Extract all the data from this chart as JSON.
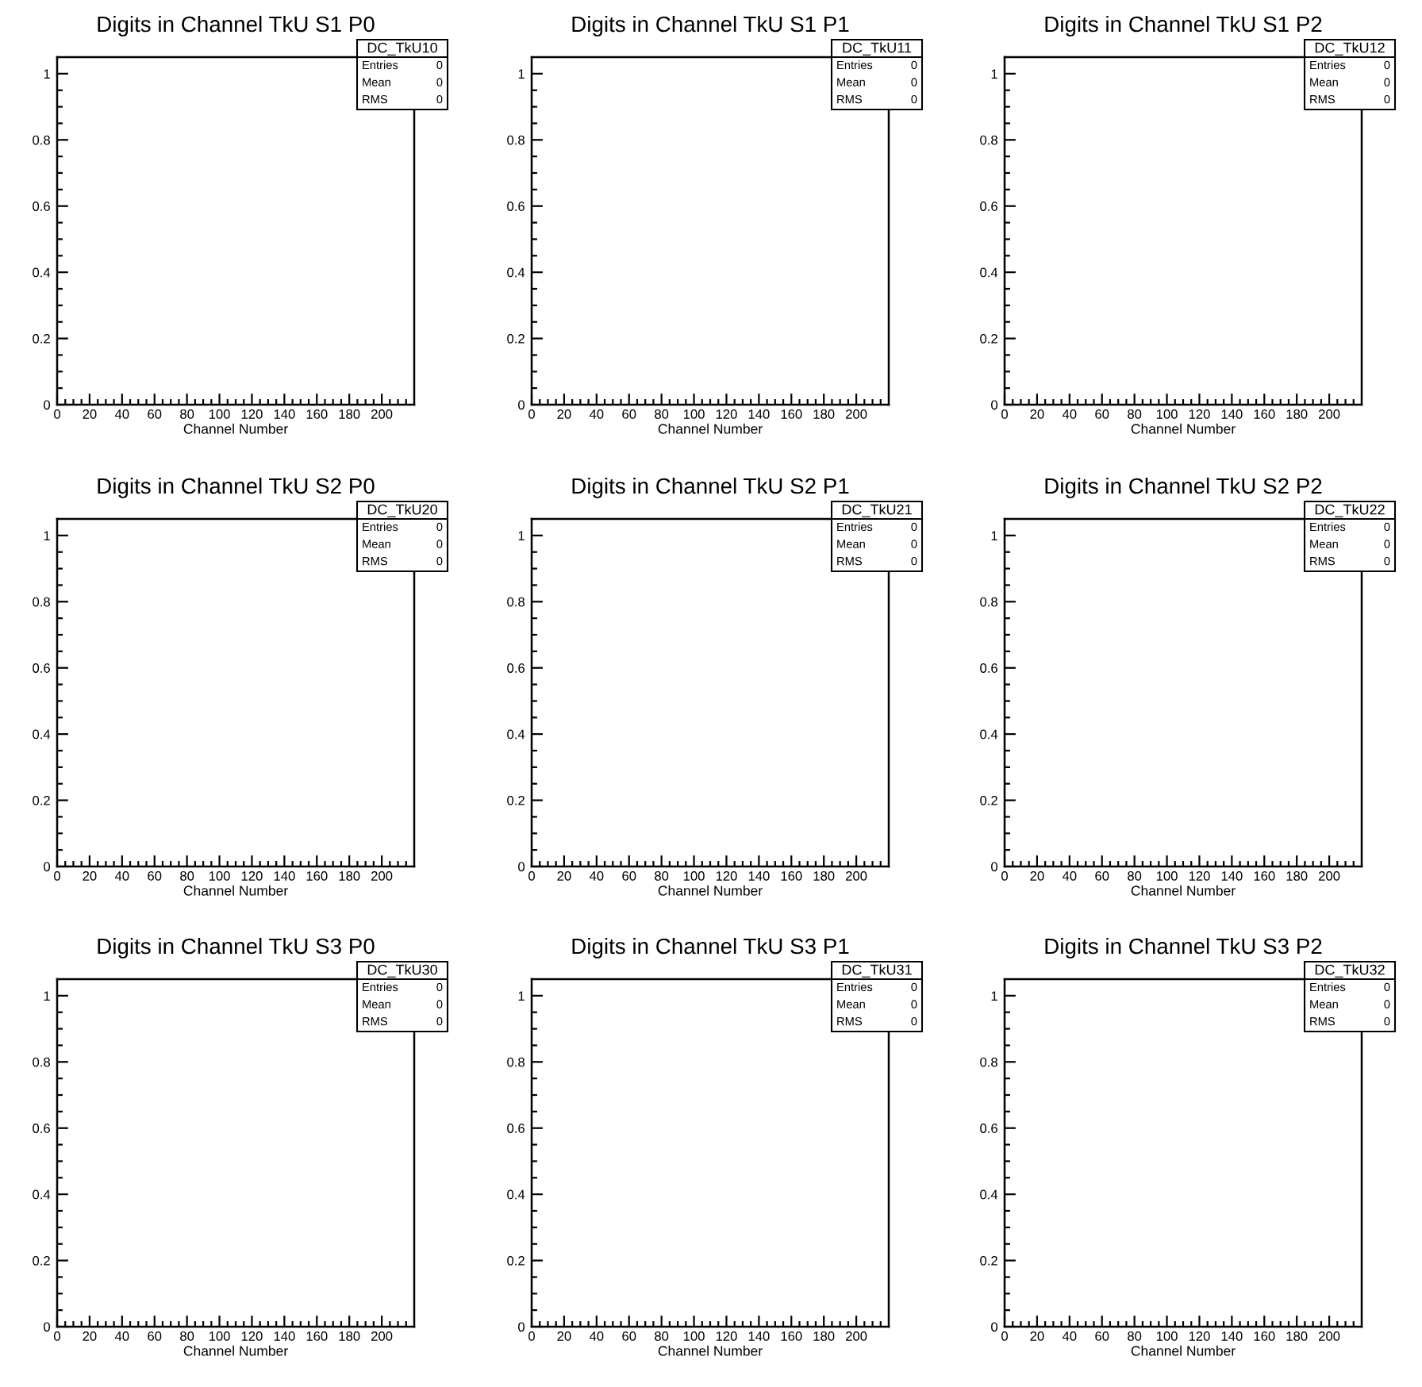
{
  "chart_data": [
    {
      "type": "histogram",
      "title": "Digits in Channel TkU S1 P0",
      "xlabel": "Channel Number",
      "xlim": [
        0,
        220
      ],
      "ylim": [
        0,
        1.05
      ],
      "xticks": [
        0,
        {
          "value": 5,
          "label": null
        },
        {
          "value": 10,
          "label": null
        },
        {
          "value": 15,
          "label": null
        },
        20,
        {
          "value": 25,
          "label": null
        },
        {
          "value": 30,
          "label": null
        },
        {
          "value": 35,
          "label": null
        },
        40,
        {
          "value": 45,
          "label": null
        },
        {
          "value": 50,
          "label": null
        },
        {
          "value": 55,
          "label": null
        },
        60,
        {
          "value": 65,
          "label": null
        },
        {
          "value": 70,
          "label": null
        },
        {
          "value": 75,
          "label": null
        },
        80,
        {
          "value": 85,
          "label": null
        },
        {
          "value": 90,
          "label": null
        },
        {
          "value": 95,
          "label": null
        },
        100,
        {
          "value": 105,
          "label": null
        },
        {
          "value": 110,
          "label": null
        },
        {
          "value": 115,
          "label": null
        },
        120,
        {
          "value": 125,
          "label": null
        },
        {
          "value": 130,
          "label": null
        },
        {
          "value": 135,
          "label": null
        },
        140,
        {
          "value": 145,
          "label": null
        },
        {
          "value": 150,
          "label": null
        },
        {
          "value": 155,
          "label": null
        },
        160,
        {
          "value": 165,
          "label": null
        },
        {
          "value": 170,
          "label": null
        },
        {
          "value": 175,
          "label": null
        },
        180,
        {
          "value": 185,
          "label": null
        },
        {
          "value": 190,
          "label": null
        },
        {
          "value": 195,
          "label": null
        },
        200,
        {
          "value": 205,
          "label": null
        },
        {
          "value": 210,
          "label": null
        },
        {
          "value": 215,
          "label": null
        }
      ],
      "yticks": [
        0,
        {
          "value": 0.05,
          "label": null
        },
        {
          "value": 0.1,
          "label": null
        },
        {
          "value": 0.15,
          "label": null
        },
        0.2,
        {
          "value": 0.25,
          "label": null
        },
        {
          "value": 0.3,
          "label": null
        },
        {
          "value": 0.35,
          "label": null
        },
        0.4,
        {
          "value": 0.45,
          "label": null
        },
        {
          "value": 0.5,
          "label": null
        },
        {
          "value": 0.55,
          "label": null
        },
        0.6,
        {
          "value": 0.65,
          "label": null
        },
        {
          "value": 0.7,
          "label": null
        },
        {
          "value": 0.75,
          "label": null
        },
        0.8,
        {
          "value": 0.85,
          "label": null
        },
        {
          "value": 0.9,
          "label": null
        },
        {
          "value": 0.95,
          "label": null
        },
        1
      ],
      "annotations": [
        "DC_TkU10",
        "Entries",
        "0",
        "Mean",
        "0",
        "RMS",
        "0"
      ]
    },
    {
      "type": "histogram",
      "title": "Digits in Channel TkU S1 P1",
      "xlabel": "Channel Number",
      "xlim": [
        0,
        220
      ],
      "ylim": [
        0,
        1.05
      ],
      "xticks": [
        0,
        {
          "value": 5,
          "label": null
        },
        {
          "value": 10,
          "label": null
        },
        {
          "value": 15,
          "label": null
        },
        20,
        {
          "value": 25,
          "label": null
        },
        {
          "value": 30,
          "label": null
        },
        {
          "value": 35,
          "label": null
        },
        40,
        {
          "value": 45,
          "label": null
        },
        {
          "value": 50,
          "label": null
        },
        {
          "value": 55,
          "label": null
        },
        60,
        {
          "value": 65,
          "label": null
        },
        {
          "value": 70,
          "label": null
        },
        {
          "value": 75,
          "label": null
        },
        80,
        {
          "value": 85,
          "label": null
        },
        {
          "value": 90,
          "label": null
        },
        {
          "value": 95,
          "label": null
        },
        100,
        {
          "value": 105,
          "label": null
        },
        {
          "value": 110,
          "label": null
        },
        {
          "value": 115,
          "label": null
        },
        120,
        {
          "value": 125,
          "label": null
        },
        {
          "value": 130,
          "label": null
        },
        {
          "value": 135,
          "label": null
        },
        140,
        {
          "value": 145,
          "label": null
        },
        {
          "value": 150,
          "label": null
        },
        {
          "value": 155,
          "label": null
        },
        160,
        {
          "value": 165,
          "label": null
        },
        {
          "value": 170,
          "label": null
        },
        {
          "value": 175,
          "label": null
        },
        180,
        {
          "value": 185,
          "label": null
        },
        {
          "value": 190,
          "label": null
        },
        {
          "value": 195,
          "label": null
        },
        200,
        {
          "value": 205,
          "label": null
        },
        {
          "value": 210,
          "label": null
        },
        {
          "value": 215,
          "label": null
        }
      ],
      "yticks": [
        0,
        {
          "value": 0.05,
          "label": null
        },
        {
          "value": 0.1,
          "label": null
        },
        {
          "value": 0.15,
          "label": null
        },
        0.2,
        {
          "value": 0.25,
          "label": null
        },
        {
          "value": 0.3,
          "label": null
        },
        {
          "value": 0.35,
          "label": null
        },
        0.4,
        {
          "value": 0.45,
          "label": null
        },
        {
          "value": 0.5,
          "label": null
        },
        {
          "value": 0.55,
          "label": null
        },
        0.6,
        {
          "value": 0.65,
          "label": null
        },
        {
          "value": 0.7,
          "label": null
        },
        {
          "value": 0.75,
          "label": null
        },
        0.8,
        {
          "value": 0.85,
          "label": null
        },
        {
          "value": 0.9,
          "label": null
        },
        {
          "value": 0.95,
          "label": null
        },
        1
      ],
      "annotations": [
        "DC_TkU11",
        "Entries",
        "0",
        "Mean",
        "0",
        "RMS",
        "0"
      ]
    },
    {
      "type": "histogram",
      "title": "Digits in Channel TkU S1 P2",
      "xlabel": "Channel Number",
      "xlim": [
        0,
        220
      ],
      "ylim": [
        0,
        1.05
      ],
      "xticks": [
        0,
        {
          "value": 5,
          "label": null
        },
        {
          "value": 10,
          "label": null
        },
        {
          "value": 15,
          "label": null
        },
        20,
        {
          "value": 25,
          "label": null
        },
        {
          "value": 30,
          "label": null
        },
        {
          "value": 35,
          "label": null
        },
        40,
        {
          "value": 45,
          "label": null
        },
        {
          "value": 50,
          "label": null
        },
        {
          "value": 55,
          "label": null
        },
        60,
        {
          "value": 65,
          "label": null
        },
        {
          "value": 70,
          "label": null
        },
        {
          "value": 75,
          "label": null
        },
        80,
        {
          "value": 85,
          "label": null
        },
        {
          "value": 90,
          "label": null
        },
        {
          "value": 95,
          "label": null
        },
        100,
        {
          "value": 105,
          "label": null
        },
        {
          "value": 110,
          "label": null
        },
        {
          "value": 115,
          "label": null
        },
        120,
        {
          "value": 125,
          "label": null
        },
        {
          "value": 130,
          "label": null
        },
        {
          "value": 135,
          "label": null
        },
        140,
        {
          "value": 145,
          "label": null
        },
        {
          "value": 150,
          "label": null
        },
        {
          "value": 155,
          "label": null
        },
        160,
        {
          "value": 165,
          "label": null
        },
        {
          "value": 170,
          "label": null
        },
        {
          "value": 175,
          "label": null
        },
        180,
        {
          "value": 185,
          "label": null
        },
        {
          "value": 190,
          "label": null
        },
        {
          "value": 195,
          "label": null
        },
        200,
        {
          "value": 205,
          "label": null
        },
        {
          "value": 210,
          "label": null
        },
        {
          "value": 215,
          "label": null
        }
      ],
      "yticks": [
        0,
        {
          "value": 0.05,
          "label": null
        },
        {
          "value": 0.1,
          "label": null
        },
        {
          "value": 0.15,
          "label": null
        },
        0.2,
        {
          "value": 0.25,
          "label": null
        },
        {
          "value": 0.3,
          "label": null
        },
        {
          "value": 0.35,
          "label": null
        },
        0.4,
        {
          "value": 0.45,
          "label": null
        },
        {
          "value": 0.5,
          "label": null
        },
        {
          "value": 0.55,
          "label": null
        },
        0.6,
        {
          "value": 0.65,
          "label": null
        },
        {
          "value": 0.7,
          "label": null
        },
        {
          "value": 0.75,
          "label": null
        },
        0.8,
        {
          "value": 0.85,
          "label": null
        },
        {
          "value": 0.9,
          "label": null
        },
        {
          "value": 0.95,
          "label": null
        },
        1
      ],
      "annotations": [
        "DC_TkU12",
        "Entries",
        "0",
        "Mean",
        "0",
        "RMS",
        "0"
      ]
    },
    {
      "type": "histogram",
      "title": "Digits in Channel TkU S2 P0",
      "xlabel": "Channel Number",
      "xlim": [
        0,
        220
      ],
      "ylim": [
        0,
        1.05
      ],
      "xticks": [
        0,
        {
          "value": 5,
          "label": null
        },
        {
          "value": 10,
          "label": null
        },
        {
          "value": 15,
          "label": null
        },
        20,
        {
          "value": 25,
          "label": null
        },
        {
          "value": 30,
          "label": null
        },
        {
          "value": 35,
          "label": null
        },
        40,
        {
          "value": 45,
          "label": null
        },
        {
          "value": 50,
          "label": null
        },
        {
          "value": 55,
          "label": null
        },
        60,
        {
          "value": 65,
          "label": null
        },
        {
          "value": 70,
          "label": null
        },
        {
          "value": 75,
          "label": null
        },
        80,
        {
          "value": 85,
          "label": null
        },
        {
          "value": 90,
          "label": null
        },
        {
          "value": 95,
          "label": null
        },
        100,
        {
          "value": 105,
          "label": null
        },
        {
          "value": 110,
          "label": null
        },
        {
          "value": 115,
          "label": null
        },
        120,
        {
          "value": 125,
          "label": null
        },
        {
          "value": 130,
          "label": null
        },
        {
          "value": 135,
          "label": null
        },
        140,
        {
          "value": 145,
          "label": null
        },
        {
          "value": 150,
          "label": null
        },
        {
          "value": 155,
          "label": null
        },
        160,
        {
          "value": 165,
          "label": null
        },
        {
          "value": 170,
          "label": null
        },
        {
          "value": 175,
          "label": null
        },
        180,
        {
          "value": 185,
          "label": null
        },
        {
          "value": 190,
          "label": null
        },
        {
          "value": 195,
          "label": null
        },
        200,
        {
          "value": 205,
          "label": null
        },
        {
          "value": 210,
          "label": null
        },
        {
          "value": 215,
          "label": null
        }
      ],
      "yticks": [
        0,
        {
          "value": 0.05,
          "label": null
        },
        {
          "value": 0.1,
          "label": null
        },
        {
          "value": 0.15,
          "label": null
        },
        0.2,
        {
          "value": 0.25,
          "label": null
        },
        {
          "value": 0.3,
          "label": null
        },
        {
          "value": 0.35,
          "label": null
        },
        0.4,
        {
          "value": 0.45,
          "label": null
        },
        {
          "value": 0.5,
          "label": null
        },
        {
          "value": 0.55,
          "label": null
        },
        0.6,
        {
          "value": 0.65,
          "label": null
        },
        {
          "value": 0.7,
          "label": null
        },
        {
          "value": 0.75,
          "label": null
        },
        0.8,
        {
          "value": 0.85,
          "label": null
        },
        {
          "value": 0.9,
          "label": null
        },
        {
          "value": 0.95,
          "label": null
        },
        1
      ],
      "annotations": [
        "DC_TkU20",
        "Entries",
        "0",
        "Mean",
        "0",
        "RMS",
        "0"
      ]
    },
    {
      "type": "histogram",
      "title": "Digits in Channel TkU S2 P1",
      "xlabel": "Channel Number",
      "xlim": [
        0,
        220
      ],
      "ylim": [
        0,
        1.05
      ],
      "xticks": [
        0,
        {
          "value": 5,
          "label": null
        },
        {
          "value": 10,
          "label": null
        },
        {
          "value": 15,
          "label": null
        },
        20,
        {
          "value": 25,
          "label": null
        },
        {
          "value": 30,
          "label": null
        },
        {
          "value": 35,
          "label": null
        },
        40,
        {
          "value": 45,
          "label": null
        },
        {
          "value": 50,
          "label": null
        },
        {
          "value": 55,
          "label": null
        },
        60,
        {
          "value": 65,
          "label": null
        },
        {
          "value": 70,
          "label": null
        },
        {
          "value": 75,
          "label": null
        },
        80,
        {
          "value": 85,
          "label": null
        },
        {
          "value": 90,
          "label": null
        },
        {
          "value": 95,
          "label": null
        },
        100,
        {
          "value": 105,
          "label": null
        },
        {
          "value": 110,
          "label": null
        },
        {
          "value": 115,
          "label": null
        },
        120,
        {
          "value": 125,
          "label": null
        },
        {
          "value": 130,
          "label": null
        },
        {
          "value": 135,
          "label": null
        },
        140,
        {
          "value": 145,
          "label": null
        },
        {
          "value": 150,
          "label": null
        },
        {
          "value": 155,
          "label": null
        },
        160,
        {
          "value": 165,
          "label": null
        },
        {
          "value": 170,
          "label": null
        },
        {
          "value": 175,
          "label": null
        },
        180,
        {
          "value": 185,
          "label": null
        },
        {
          "value": 190,
          "label": null
        },
        {
          "value": 195,
          "label": null
        },
        200,
        {
          "value": 205,
          "label": null
        },
        {
          "value": 210,
          "label": null
        },
        {
          "value": 215,
          "label": null
        }
      ],
      "yticks": [
        0,
        {
          "value": 0.05,
          "label": null
        },
        {
          "value": 0.1,
          "label": null
        },
        {
          "value": 0.15,
          "label": null
        },
        0.2,
        {
          "value": 0.25,
          "label": null
        },
        {
          "value": 0.3,
          "label": null
        },
        {
          "value": 0.35,
          "label": null
        },
        0.4,
        {
          "value": 0.45,
          "label": null
        },
        {
          "value": 0.5,
          "label": null
        },
        {
          "value": 0.55,
          "label": null
        },
        0.6,
        {
          "value": 0.65,
          "label": null
        },
        {
          "value": 0.7,
          "label": null
        },
        {
          "value": 0.75,
          "label": null
        },
        0.8,
        {
          "value": 0.85,
          "label": null
        },
        {
          "value": 0.9,
          "label": null
        },
        {
          "value": 0.95,
          "label": null
        },
        1
      ],
      "annotations": [
        "DC_TkU21",
        "Entries",
        "0",
        "Mean",
        "0",
        "RMS",
        "0"
      ]
    },
    {
      "type": "histogram",
      "title": "Digits in Channel TkU S2 P2",
      "xlabel": "Channel Number",
      "xlim": [
        0,
        220
      ],
      "ylim": [
        0,
        1.05
      ],
      "xticks": [
        0,
        {
          "value": 5,
          "label": null
        },
        {
          "value": 10,
          "label": null
        },
        {
          "value": 15,
          "label": null
        },
        20,
        {
          "value": 25,
          "label": null
        },
        {
          "value": 30,
          "label": null
        },
        {
          "value": 35,
          "label": null
        },
        40,
        {
          "value": 45,
          "label": null
        },
        {
          "value": 50,
          "label": null
        },
        {
          "value": 55,
          "label": null
        },
        60,
        {
          "value": 65,
          "label": null
        },
        {
          "value": 70,
          "label": null
        },
        {
          "value": 75,
          "label": null
        },
        80,
        {
          "value": 85,
          "label": null
        },
        {
          "value": 90,
          "label": null
        },
        {
          "value": 95,
          "label": null
        },
        100,
        {
          "value": 105,
          "label": null
        },
        {
          "value": 110,
          "label": null
        },
        {
          "value": 115,
          "label": null
        },
        120,
        {
          "value": 125,
          "label": null
        },
        {
          "value": 130,
          "label": null
        },
        {
          "value": 135,
          "label": null
        },
        140,
        {
          "value": 145,
          "label": null
        },
        {
          "value": 150,
          "label": null
        },
        {
          "value": 155,
          "label": null
        },
        160,
        {
          "value": 165,
          "label": null
        },
        {
          "value": 170,
          "label": null
        },
        {
          "value": 175,
          "label": null
        },
        180,
        {
          "value": 185,
          "label": null
        },
        {
          "value": 190,
          "label": null
        },
        {
          "value": 195,
          "label": null
        },
        200,
        {
          "value": 205,
          "label": null
        },
        {
          "value": 210,
          "label": null
        },
        {
          "value": 215,
          "label": null
        }
      ],
      "yticks": [
        0,
        {
          "value": 0.05,
          "label": null
        },
        {
          "value": 0.1,
          "label": null
        },
        {
          "value": 0.15,
          "label": null
        },
        0.2,
        {
          "value": 0.25,
          "label": null
        },
        {
          "value": 0.3,
          "label": null
        },
        {
          "value": 0.35,
          "label": null
        },
        0.4,
        {
          "value": 0.45,
          "label": null
        },
        {
          "value": 0.5,
          "label": null
        },
        {
          "value": 0.55,
          "label": null
        },
        0.6,
        {
          "value": 0.65,
          "label": null
        },
        {
          "value": 0.7,
          "label": null
        },
        {
          "value": 0.75,
          "label": null
        },
        0.8,
        {
          "value": 0.85,
          "label": null
        },
        {
          "value": 0.9,
          "label": null
        },
        {
          "value": 0.95,
          "label": null
        },
        1
      ],
      "annotations": [
        "DC_TkU22",
        "Entries",
        "0",
        "Mean",
        "0",
        "RMS",
        "0"
      ]
    },
    {
      "type": "histogram",
      "title": "Digits in Channel TkU S3 P0",
      "xlabel": "Channel Number",
      "xlim": [
        0,
        220
      ],
      "ylim": [
        0,
        1.05
      ],
      "xticks": [
        0,
        {
          "value": 5,
          "label": null
        },
        {
          "value": 10,
          "label": null
        },
        {
          "value": 15,
          "label": null
        },
        20,
        {
          "value": 25,
          "label": null
        },
        {
          "value": 30,
          "label": null
        },
        {
          "value": 35,
          "label": null
        },
        40,
        {
          "value": 45,
          "label": null
        },
        {
          "value": 50,
          "label": null
        },
        {
          "value": 55,
          "label": null
        },
        60,
        {
          "value": 65,
          "label": null
        },
        {
          "value": 70,
          "label": null
        },
        {
          "value": 75,
          "label": null
        },
        80,
        {
          "value": 85,
          "label": null
        },
        {
          "value": 90,
          "label": null
        },
        {
          "value": 95,
          "label": null
        },
        100,
        {
          "value": 105,
          "label": null
        },
        {
          "value": 110,
          "label": null
        },
        {
          "value": 115,
          "label": null
        },
        120,
        {
          "value": 125,
          "label": null
        },
        {
          "value": 130,
          "label": null
        },
        {
          "value": 135,
          "label": null
        },
        140,
        {
          "value": 145,
          "label": null
        },
        {
          "value": 150,
          "label": null
        },
        {
          "value": 155,
          "label": null
        },
        160,
        {
          "value": 165,
          "label": null
        },
        {
          "value": 170,
          "label": null
        },
        {
          "value": 175,
          "label": null
        },
        180,
        {
          "value": 185,
          "label": null
        },
        {
          "value": 190,
          "label": null
        },
        {
          "value": 195,
          "label": null
        },
        200,
        {
          "value": 205,
          "label": null
        },
        {
          "value": 210,
          "label": null
        },
        {
          "value": 215,
          "label": null
        }
      ],
      "yticks": [
        0,
        {
          "value": 0.05,
          "label": null
        },
        {
          "value": 0.1,
          "label": null
        },
        {
          "value": 0.15,
          "label": null
        },
        0.2,
        {
          "value": 0.25,
          "label": null
        },
        {
          "value": 0.3,
          "label": null
        },
        {
          "value": 0.35,
          "label": null
        },
        0.4,
        {
          "value": 0.45,
          "label": null
        },
        {
          "value": 0.5,
          "label": null
        },
        {
          "value": 0.55,
          "label": null
        },
        0.6,
        {
          "value": 0.65,
          "label": null
        },
        {
          "value": 0.7,
          "label": null
        },
        {
          "value": 0.75,
          "label": null
        },
        0.8,
        {
          "value": 0.85,
          "label": null
        },
        {
          "value": 0.9,
          "label": null
        },
        {
          "value": 0.95,
          "label": null
        },
        1
      ],
      "annotations": [
        "DC_TkU30",
        "Entries",
        "0",
        "Mean",
        "0",
        "RMS",
        "0"
      ]
    },
    {
      "type": "histogram",
      "title": "Digits in Channel TkU S3 P1",
      "xlabel": "Channel Number",
      "xlim": [
        0,
        220
      ],
      "ylim": [
        0,
        1.05
      ],
      "xticks": [
        0,
        {
          "value": 5,
          "label": null
        },
        {
          "value": 10,
          "label": null
        },
        {
          "value": 15,
          "label": null
        },
        20,
        {
          "value": 25,
          "label": null
        },
        {
          "value": 30,
          "label": null
        },
        {
          "value": 35,
          "label": null
        },
        40,
        {
          "value": 45,
          "label": null
        },
        {
          "value": 50,
          "label": null
        },
        {
          "value": 55,
          "label": null
        },
        60,
        {
          "value": 65,
          "label": null
        },
        {
          "value": 70,
          "label": null
        },
        {
          "value": 75,
          "label": null
        },
        80,
        {
          "value": 85,
          "label": null
        },
        {
          "value": 90,
          "label": null
        },
        {
          "value": 95,
          "label": null
        },
        100,
        {
          "value": 105,
          "label": null
        },
        {
          "value": 110,
          "label": null
        },
        {
          "value": 115,
          "label": null
        },
        120,
        {
          "value": 125,
          "label": null
        },
        {
          "value": 130,
          "label": null
        },
        {
          "value": 135,
          "label": null
        },
        140,
        {
          "value": 145,
          "label": null
        },
        {
          "value": 150,
          "label": null
        },
        {
          "value": 155,
          "label": null
        },
        160,
        {
          "value": 165,
          "label": null
        },
        {
          "value": 170,
          "label": null
        },
        {
          "value": 175,
          "label": null
        },
        180,
        {
          "value": 185,
          "label": null
        },
        {
          "value": 190,
          "label": null
        },
        {
          "value": 195,
          "label": null
        },
        200,
        {
          "value": 205,
          "label": null
        },
        {
          "value": 210,
          "label": null
        },
        {
          "value": 215,
          "label": null
        }
      ],
      "yticks": [
        0,
        {
          "value": 0.05,
          "label": null
        },
        {
          "value": 0.1,
          "label": null
        },
        {
          "value": 0.15,
          "label": null
        },
        0.2,
        {
          "value": 0.25,
          "label": null
        },
        {
          "value": 0.3,
          "label": null
        },
        {
          "value": 0.35,
          "label": null
        },
        0.4,
        {
          "value": 0.45,
          "label": null
        },
        {
          "value": 0.5,
          "label": null
        },
        {
          "value": 0.55,
          "label": null
        },
        0.6,
        {
          "value": 0.65,
          "label": null
        },
        {
          "value": 0.7,
          "label": null
        },
        {
          "value": 0.75,
          "label": null
        },
        0.8,
        {
          "value": 0.85,
          "label": null
        },
        {
          "value": 0.9,
          "label": null
        },
        {
          "value": 0.95,
          "label": null
        },
        1
      ],
      "annotations": [
        "DC_TkU31",
        "Entries",
        "0",
        "Mean",
        "0",
        "RMS",
        "0"
      ]
    },
    {
      "type": "histogram",
      "title": "Digits in Channel TkU S3 P2",
      "xlabel": "Channel Number",
      "xlim": [
        0,
        220
      ],
      "ylim": [
        0,
        1.05
      ],
      "xticks": [
        0,
        {
          "value": 5,
          "label": null
        },
        {
          "value": 10,
          "label": null
        },
        {
          "value": 15,
          "label": null
        },
        20,
        {
          "value": 25,
          "label": null
        },
        {
          "value": 30,
          "label": null
        },
        {
          "value": 35,
          "label": null
        },
        40,
        {
          "value": 45,
          "label": null
        },
        {
          "value": 50,
          "label": null
        },
        {
          "value": 55,
          "label": null
        },
        60,
        {
          "value": 65,
          "label": null
        },
        {
          "value": 70,
          "label": null
        },
        {
          "value": 75,
          "label": null
        },
        80,
        {
          "value": 85,
          "label": null
        },
        {
          "value": 90,
          "label": null
        },
        {
          "value": 95,
          "label": null
        },
        100,
        {
          "value": 105,
          "label": null
        },
        {
          "value": 110,
          "label": null
        },
        {
          "value": 115,
          "label": null
        },
        120,
        {
          "value": 125,
          "label": null
        },
        {
          "value": 130,
          "label": null
        },
        {
          "value": 135,
          "label": null
        },
        140,
        {
          "value": 145,
          "label": null
        },
        {
          "value": 150,
          "label": null
        },
        {
          "value": 155,
          "label": null
        },
        160,
        {
          "value": 165,
          "label": null
        },
        {
          "value": 170,
          "label": null
        },
        {
          "value": 175,
          "label": null
        },
        180,
        {
          "value": 185,
          "label": null
        },
        {
          "value": 190,
          "label": null
        },
        {
          "value": 195,
          "label": null
        },
        200,
        {
          "value": 205,
          "label": null
        },
        {
          "value": 210,
          "label": null
        },
        {
          "value": 215,
          "label": null
        }
      ],
      "yticks": [
        0,
        {
          "value": 0.05,
          "label": null
        },
        {
          "value": 0.1,
          "label": null
        },
        {
          "value": 0.15,
          "label": null
        },
        0.2,
        {
          "value": 0.25,
          "label": null
        },
        {
          "value": 0.3,
          "label": null
        },
        {
          "value": 0.35,
          "label": null
        },
        0.4,
        {
          "value": 0.45,
          "label": null
        },
        {
          "value": 0.5,
          "label": null
        },
        {
          "value": 0.55,
          "label": null
        },
        0.6,
        {
          "value": 0.65,
          "label": null
        },
        {
          "value": 0.7,
          "label": null
        },
        {
          "value": 0.75,
          "label": null
        },
        0.8,
        {
          "value": 0.85,
          "label": null
        },
        {
          "value": 0.9,
          "label": null
        },
        {
          "value": 0.95,
          "label": null
        },
        1
      ],
      "annotations": [
        "DC_TkU32",
        "Entries",
        "0",
        "Mean",
        "0",
        "RMS",
        "0"
      ]
    }
  ]
}
